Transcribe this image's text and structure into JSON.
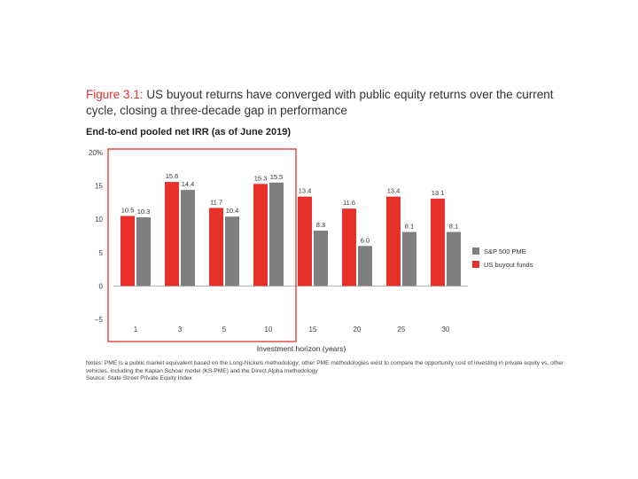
{
  "header": {
    "figure_label": "Figure 3.1:",
    "title": "US buyout returns have converged with public equity returns over the current cycle, closing a three-decade gap in performance",
    "subtitle": "End-to-end pooled net IRR (as of June 2019)"
  },
  "chart_data": {
    "type": "bar",
    "categories": [
      "1",
      "3",
      "5",
      "10",
      "15",
      "20",
      "25",
      "30"
    ],
    "series": [
      {
        "name": "US buyout funds",
        "values": [
          10.5,
          15.6,
          11.7,
          15.3,
          13.4,
          11.6,
          13.4,
          13.1
        ]
      },
      {
        "name": "S&P 500 PME",
        "values": [
          10.3,
          14.4,
          10.4,
          15.5,
          8.3,
          6.0,
          8.1,
          8.1
        ]
      }
    ],
    "value_labels": {
      "US buyout funds": [
        "10.5",
        "15.6",
        "11.7",
        "15.3",
        "13.4",
        "11.6",
        "13.4",
        "13.1"
      ],
      "S&P 500 PME": [
        "10.3",
        "14.4",
        "10.4",
        "15.5",
        "8.3",
        "6.0",
        "8.1",
        "8.1"
      ]
    },
    "xlabel": "Investment horizon (years)",
    "ylabel": "",
    "ylim": [
      -5,
      20
    ],
    "yticks": [
      20,
      15,
      10,
      5,
      0,
      -5
    ],
    "ytick_labels": [
      "20%",
      "15",
      "10",
      "5",
      "0",
      "–5"
    ],
    "legend": [
      {
        "label": "S&P 500 PME",
        "color": "#7f7f7f"
      },
      {
        "label": "US buyout funds",
        "color": "#e8302b"
      }
    ],
    "legend_position": "right",
    "highlight_categories": [
      "1",
      "3",
      "5",
      "10"
    ],
    "colors": {
      "buyout": "#e8302b",
      "pme": "#7f7f7f",
      "highlight_box": "#e8302b"
    },
    "grid": false
  },
  "footer": {
    "notes": "Notes: PME is a public market equivalent based on the Long-Nickels methodology; other PME methodologies exist to compare the opportunity cost of investing in private equity vs. other vehicles, including the Kaplan Schoar model (KS-PME) and the Direct Alpha methodology",
    "source": "Source: State Street Private Equity Index"
  }
}
